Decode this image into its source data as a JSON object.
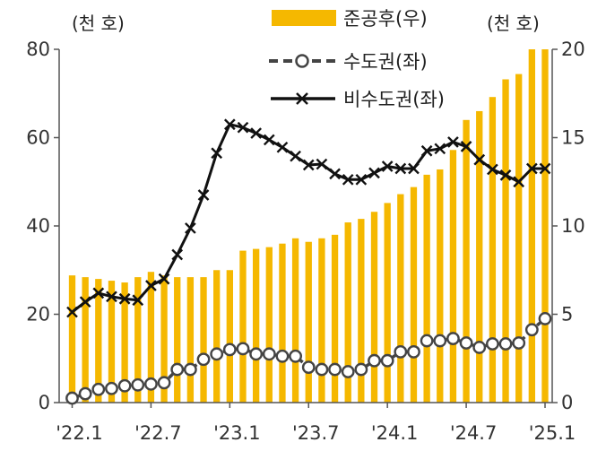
{
  "chart_data": {
    "type": "bar",
    "left_axis_unit": "(천 호)",
    "right_axis_unit": "(천 호)",
    "left_axis": {
      "ylim": [
        0,
        80
      ],
      "ticks": [
        "0",
        "20",
        "40",
        "60",
        "80"
      ]
    },
    "right_axis": {
      "ylim": [
        0,
        20
      ],
      "ticks": [
        "0",
        "5",
        "10",
        "15",
        "20"
      ]
    },
    "x_tick_labels": [
      {
        "index": 0,
        "label": "'22.1"
      },
      {
        "index": 6,
        "label": "'22.7"
      },
      {
        "index": 12,
        "label": "'23.1"
      },
      {
        "index": 18,
        "label": "'23.7"
      },
      {
        "index": 24,
        "label": "'24.1"
      },
      {
        "index": 30,
        "label": "'24.7"
      },
      {
        "index": 36,
        "label": "'25.1"
      }
    ],
    "colors": {
      "bar": "#F5B800",
      "capital": "#444444",
      "noncapital": "#111111"
    },
    "legend_position": "top",
    "series": [
      {
        "name": "준공후(우)",
        "type": "bar",
        "axis": "right",
        "values": [
          7.2,
          7.1,
          7.0,
          6.9,
          6.8,
          7.1,
          7.4,
          7.2,
          7.1,
          7.1,
          7.1,
          7.5,
          7.5,
          8.6,
          8.7,
          8.8,
          9.0,
          9.3,
          9.1,
          9.3,
          9.5,
          10.2,
          10.4,
          10.8,
          11.3,
          11.8,
          12.2,
          12.9,
          13.2,
          14.3,
          16.0,
          16.5,
          17.3,
          18.3,
          18.6,
          20.0,
          20.0
        ]
      },
      {
        "name": "수도권(좌)",
        "type": "line",
        "axis": "left",
        "marker": "circle",
        "dash": "dashed",
        "values": [
          1.0,
          2.0,
          3.0,
          3.2,
          3.8,
          4.0,
          4.2,
          4.5,
          7.5,
          7.5,
          9.8,
          11.0,
          12.0,
          12.2,
          11.0,
          11.0,
          10.5,
          10.5,
          8.0,
          7.5,
          7.5,
          7.0,
          7.5,
          9.5,
          9.5,
          11.5,
          11.5,
          14.0,
          14.0,
          14.5,
          13.5,
          12.5,
          13.3,
          13.3,
          13.5,
          16.5,
          19.0
        ]
      },
      {
        "name": "비수도권(좌)",
        "type": "line",
        "axis": "left",
        "marker": "x",
        "dash": "solid",
        "values": [
          20.5,
          22.8,
          24.8,
          24.0,
          23.5,
          23.2,
          26.5,
          28.0,
          33.5,
          39.5,
          47.0,
          56.5,
          63.0,
          62.3,
          61.0,
          59.5,
          57.8,
          55.8,
          53.8,
          54.0,
          51.8,
          50.5,
          50.5,
          52.0,
          53.5,
          53.0,
          53.0,
          57.0,
          57.5,
          59.0,
          58.0,
          55.0,
          52.8,
          51.5,
          50.0,
          53.0,
          53.0
        ]
      }
    ],
    "legend": {
      "bar_label": "준공후(우)",
      "capital_label": "수도권(좌)",
      "noncapital_label": "비수도권(좌)"
    }
  }
}
